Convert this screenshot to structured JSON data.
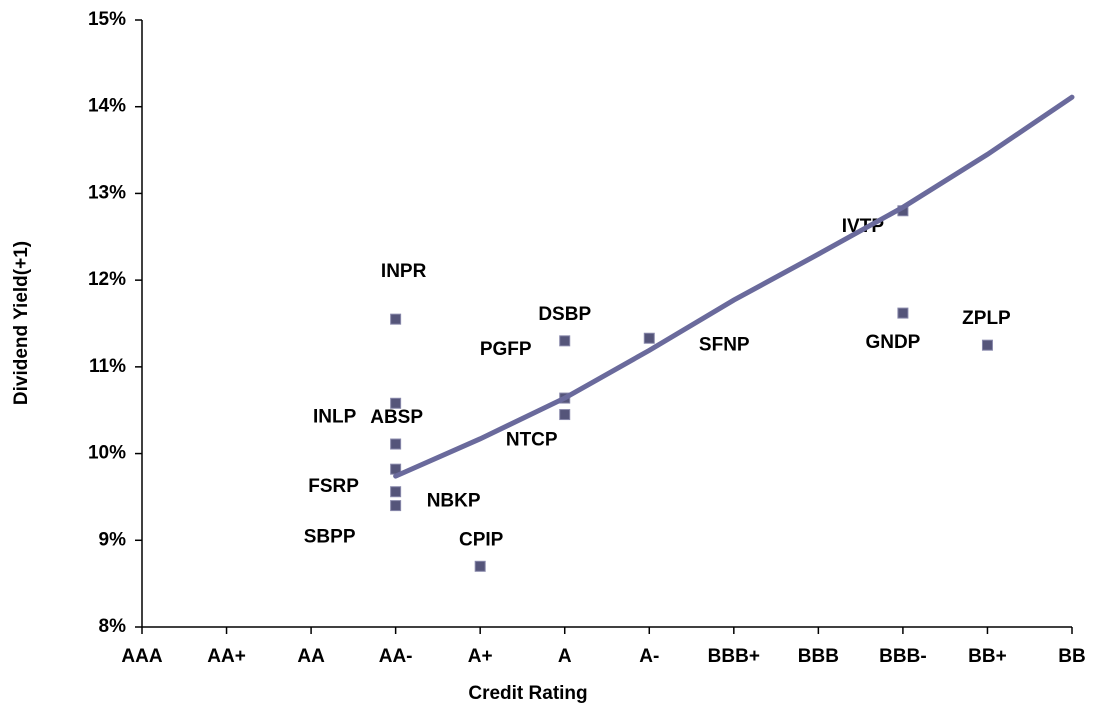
{
  "chart_data": {
    "type": "scatter",
    "xlabel": "Credit Rating",
    "ylabel": "Dividend Yield(+1)",
    "xlim": [
      0,
      11
    ],
    "xticks": [
      {
        "value": 0,
        "label": "AAA"
      },
      {
        "value": 1,
        "label": "AA+"
      },
      {
        "value": 2,
        "label": "AA"
      },
      {
        "value": 3,
        "label": "AA-"
      },
      {
        "value": 4,
        "label": "A+"
      },
      {
        "value": 5,
        "label": "A"
      },
      {
        "value": 6,
        "label": "A-"
      },
      {
        "value": 7,
        "label": "BBB+"
      },
      {
        "value": 8,
        "label": "BBB"
      },
      {
        "value": 9,
        "label": "BBB-"
      },
      {
        "value": 10,
        "label": "BB+"
      },
      {
        "value": 11,
        "label": "BB"
      }
    ],
    "ylim": [
      8,
      15
    ],
    "yticks": [
      {
        "value": 8,
        "label": "8%"
      },
      {
        "value": 9,
        "label": "9%"
      },
      {
        "value": 10,
        "label": "10%"
      },
      {
        "value": 11,
        "label": "11%"
      },
      {
        "value": 12,
        "label": "12%"
      },
      {
        "value": 13,
        "label": "13%"
      },
      {
        "value": 14,
        "label": "14%"
      },
      {
        "value": 15,
        "label": "15%"
      }
    ],
    "grid": false,
    "series": [
      {
        "type": "scatter",
        "color": "#55557a",
        "labels": [
          "INPR",
          "INLP",
          "ABSP",
          "FSRP",
          "NBKP",
          "SBPP",
          "CPIP",
          "DSBP",
          "PGFP",
          "NTCP",
          "SFNP",
          "IVTP",
          "GNDP",
          "ZPLP"
        ],
        "x": [
          3,
          3,
          3,
          3,
          3,
          3,
          4,
          5,
          5,
          5,
          6,
          9,
          9,
          10
        ],
        "values": [
          11.55,
          10.58,
          10.11,
          9.82,
          9.56,
          9.4,
          8.7,
          11.3,
          10.64,
          10.45,
          11.33,
          12.8,
          11.62,
          11.25
        ]
      },
      {
        "type": "line",
        "color": "#6a6a9c",
        "x": [
          3,
          4,
          5,
          6,
          7,
          8,
          9,
          10,
          11
        ],
        "values": [
          9.74,
          10.17,
          10.64,
          11.19,
          11.77,
          12.3,
          12.84,
          13.45,
          14.11
        ]
      }
    ]
  }
}
